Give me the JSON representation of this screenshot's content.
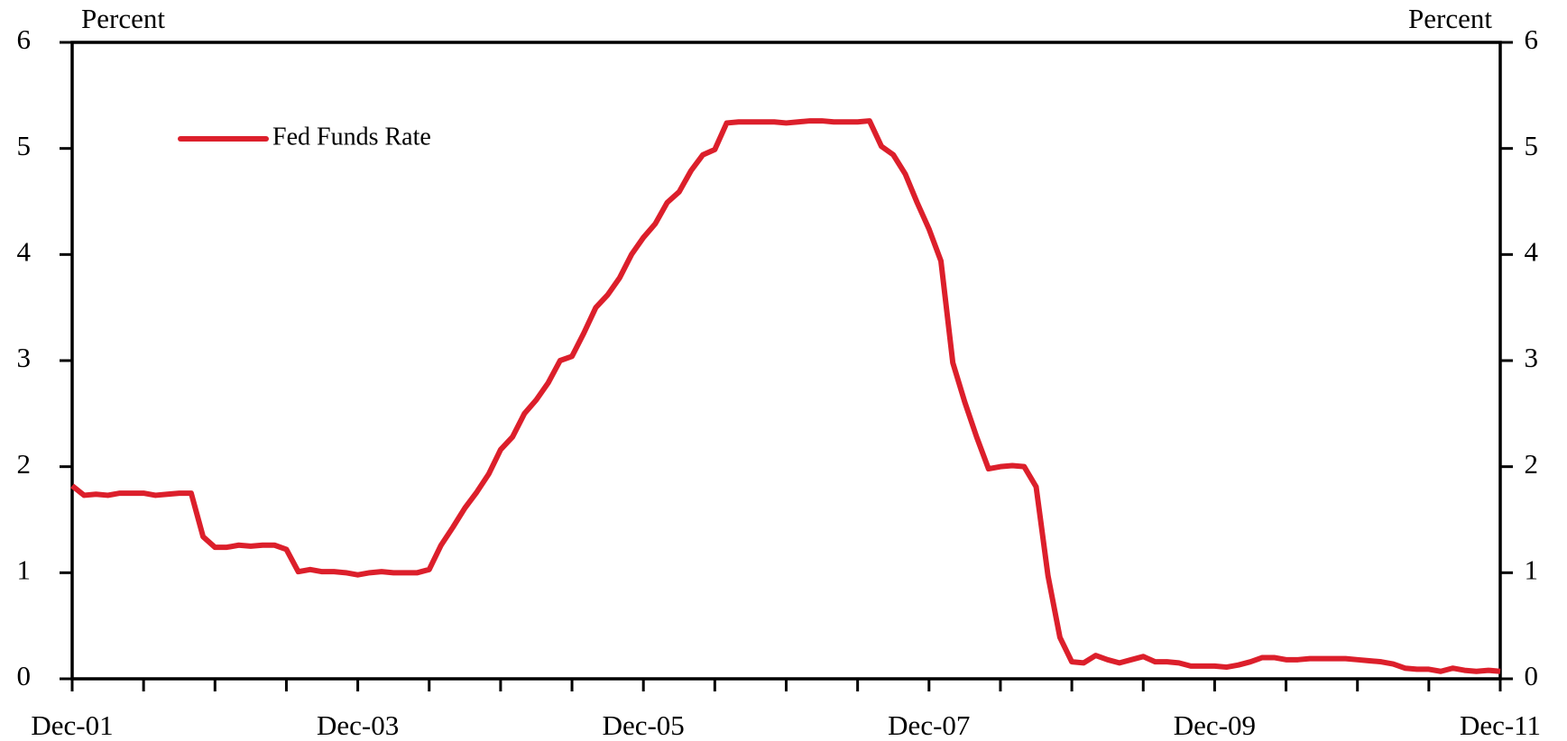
{
  "chart_data": {
    "type": "line",
    "ylabel": "Percent",
    "y2label": "Percent",
    "categories": [
      "Dec-01",
      null,
      null,
      null,
      null,
      null,
      null,
      null,
      null,
      null,
      null,
      null,
      null,
      null,
      null,
      null,
      null,
      null,
      null,
      null,
      null,
      null,
      null,
      null,
      "Dec-03",
      null,
      null,
      null,
      null,
      null,
      null,
      null,
      null,
      null,
      null,
      null,
      null,
      null,
      null,
      null,
      null,
      null,
      null,
      null,
      null,
      null,
      null,
      null,
      "Dec-05",
      null,
      null,
      null,
      null,
      null,
      null,
      null,
      null,
      null,
      null,
      null,
      null,
      null,
      null,
      null,
      null,
      null,
      null,
      null,
      null,
      null,
      null,
      null,
      "Dec-07",
      null,
      null,
      null,
      null,
      null,
      null,
      null,
      null,
      null,
      null,
      null,
      null,
      null,
      null,
      null,
      null,
      null,
      null,
      null,
      null,
      null,
      null,
      null,
      "Dec-09",
      null,
      null,
      null,
      null,
      null,
      null,
      null,
      null,
      null,
      null,
      null,
      null,
      null,
      null,
      null,
      null,
      null,
      null,
      null,
      null,
      null,
      null,
      null,
      "Dec-11"
    ],
    "series": [
      {
        "name": "Fed Funds Rate",
        "color": "#dc1f2b",
        "values": [
          1.82,
          1.73,
          1.74,
          1.73,
          1.75,
          1.75,
          1.75,
          1.73,
          1.74,
          1.75,
          1.75,
          1.34,
          1.24,
          1.24,
          1.26,
          1.25,
          1.26,
          1.26,
          1.22,
          1.01,
          1.03,
          1.01,
          1.01,
          1.0,
          0.98,
          1.0,
          1.01,
          1.0,
          1.0,
          1.0,
          1.03,
          1.26,
          1.43,
          1.61,
          1.76,
          1.93,
          2.16,
          2.28,
          2.5,
          2.63,
          2.79,
          3.0,
          3.04,
          3.26,
          3.5,
          3.62,
          3.78,
          4.0,
          4.16,
          4.29,
          4.49,
          4.59,
          4.79,
          4.94,
          4.99,
          5.24,
          5.25,
          5.25,
          5.25,
          5.25,
          5.24,
          5.25,
          5.26,
          5.26,
          5.25,
          5.25,
          5.25,
          5.26,
          5.02,
          4.94,
          4.76,
          4.49,
          4.24,
          3.94,
          2.98,
          2.61,
          2.28,
          1.98,
          2.0,
          2.01,
          2.0,
          1.81,
          0.97,
          0.39,
          0.16,
          0.15,
          0.22,
          0.18,
          0.15,
          0.18,
          0.21,
          0.16,
          0.16,
          0.15,
          0.12,
          0.12,
          0.12,
          0.11,
          0.13,
          0.16,
          0.2,
          0.2,
          0.18,
          0.18,
          0.19,
          0.19,
          0.19,
          0.19,
          0.18,
          0.17,
          0.16,
          0.14,
          0.1,
          0.09,
          0.09,
          0.07,
          0.1,
          0.08,
          0.07,
          0.08,
          0.07
        ]
      }
    ],
    "ylim": [
      0,
      6
    ],
    "yticks": [
      0,
      1,
      2,
      3,
      4,
      5,
      6
    ],
    "y2lim": [
      0,
      6
    ],
    "y2ticks": [
      0,
      1,
      2,
      3,
      4,
      5,
      6
    ],
    "legend": "upper-left"
  }
}
